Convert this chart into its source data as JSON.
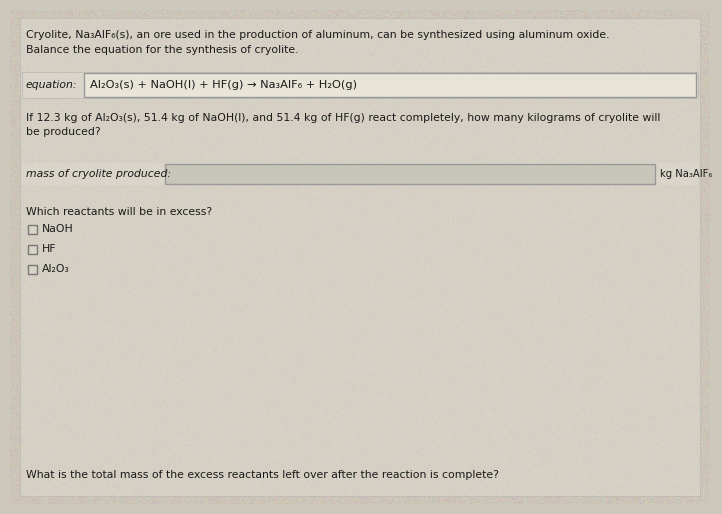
{
  "bg_color": "#ccc8bc",
  "panel_color": "#e0dcd2",
  "text_color": "#1a1a1a",
  "title_line1": "Cryolite, Na₃AlF₆(s), an ore used in the production of aluminum, can be synthesized using aluminum oxide.",
  "title_line2": "Balance the equation for the synthesis of cryolite.",
  "equation_label": "equation:",
  "equation_text": "Al₂O₃(s) + NaOH(l) + HF(g) → Na₃AlF₆ + H₂O(g)",
  "mass_question_line1": "If 12.3 kg of Al₂O₃(s), 51.4 kg of NaOH(l), and 51.4 kg of HF(g) react completely, how many kilograms of cryolite will",
  "mass_question_line2": "be produced?",
  "mass_label": "mass of cryolite produced:",
  "mass_unit": "kg Na₃AlF₆",
  "excess_question": "Which reactants will be in excess?",
  "checkbox_options": [
    "NaOH",
    "HF",
    "Al₂O₃"
  ],
  "final_question": "What is the total mass of the excess reactants left over after the reaction is complete?",
  "eq_box_border": "#999999",
  "eq_box_bg": "#e8e4d8",
  "input_box_bg": "#c8c5bb",
  "input_box_border": "#999999",
  "cb_border": "#777777",
  "cb_bg": "#d8d4c8",
  "font_size_main": 7.8,
  "font_size_eq": 8.2,
  "font_size_small": 7.2
}
